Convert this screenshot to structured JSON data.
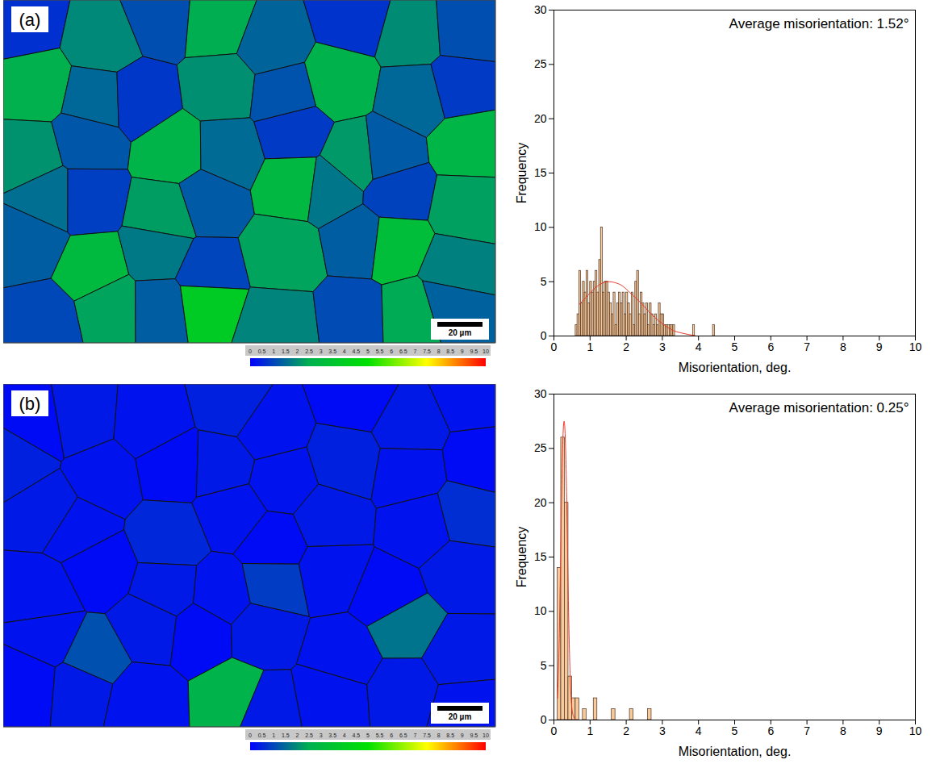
{
  "chart_data": [
    {
      "type": "histogram",
      "annotation": "Average misorientation: 1.52°",
      "x_label": "Misorientation, deg.",
      "y_label": "Frequency",
      "color": "#f7c99b",
      "bins": [
        0.6,
        0.65,
        0.7,
        0.75,
        0.8,
        0.85,
        0.9,
        0.95,
        1.0,
        1.05,
        1.1,
        1.15,
        1.2,
        1.25,
        1.3,
        1.35,
        1.4,
        1.45,
        1.5,
        1.55,
        1.6,
        1.65,
        1.7,
        1.75,
        1.8,
        1.85,
        1.9,
        1.95,
        2.0,
        2.05,
        2.1,
        2.15,
        2.2,
        2.25,
        2.3,
        2.35,
        2.4,
        2.45,
        2.5,
        2.55,
        2.6,
        2.65,
        2.7,
        2.75,
        2.8,
        2.85,
        2.9,
        2.95,
        3.0,
        3.05,
        3.1,
        3.15,
        3.2,
        3.25,
        3.3,
        3.35,
        3.4,
        3.45,
        3.5,
        3.55,
        3.6,
        3.65,
        3.7,
        3.75,
        3.8,
        3.85,
        3.9,
        3.95,
        4.0,
        4.05,
        4.1,
        4.15,
        4.2,
        4.25,
        4.3,
        4.35,
        4.4,
        4.45,
        4.5
      ],
      "counts": [
        1,
        2,
        6,
        3,
        5,
        4,
        6,
        3,
        5,
        4,
        5,
        6,
        4,
        7,
        10,
        4,
        5,
        5,
        4,
        3,
        2,
        4,
        1,
        3,
        4,
        3,
        4,
        2,
        4,
        3,
        2,
        4,
        1,
        5,
        6,
        2,
        4,
        3,
        2,
        3,
        1,
        3,
        2,
        1,
        2,
        1,
        3,
        2,
        2,
        1,
        1,
        1,
        1,
        1,
        1,
        0,
        0,
        0,
        0,
        0,
        0,
        0,
        0,
        0,
        0,
        1,
        0,
        0,
        0,
        0,
        0,
        0,
        0,
        0,
        0,
        0,
        1,
        0
      ],
      "fit": {
        "type": "line",
        "color": "#e8392a",
        "x": [
          0.7,
          0.9,
          1.1,
          1.3,
          1.5,
          1.7,
          1.9,
          2.1,
          2.3,
          2.5,
          2.7,
          2.9,
          3.1,
          3.3,
          3.5,
          3.7,
          3.9
        ],
        "values": [
          2.9,
          3.6,
          4.3,
          4.8,
          5.0,
          4.9,
          4.6,
          4.0,
          3.4,
          2.7,
          2.0,
          1.4,
          0.9,
          0.5,
          0.3,
          0.15,
          0.05
        ]
      },
      "xlim": [
        0,
        10
      ],
      "xticks": [
        0,
        1,
        2,
        3,
        4,
        5,
        6,
        7,
        8,
        9,
        10
      ],
      "ylim": [
        0,
        30
      ],
      "yticks": [
        0,
        5,
        10,
        15,
        20,
        25,
        30
      ]
    },
    {
      "type": "histogram",
      "annotation": "Average misorientation: 0.25°",
      "x_label": "Misorientation, deg.",
      "y_label": "Frequency",
      "color": "#f7c99b",
      "bins": [
        0.1,
        0.2,
        0.3,
        0.4,
        0.5,
        0.6,
        0.7,
        0.8,
        0.9,
        1.0,
        1.1,
        1.2,
        1.3,
        1.4,
        1.5,
        1.6,
        1.7,
        1.8,
        1.9,
        2.0,
        2.1,
        2.2,
        2.3,
        2.4,
        2.5,
        2.6,
        2.7
      ],
      "counts": [
        14,
        26,
        20,
        4,
        2,
        2,
        0,
        1,
        0,
        0,
        2,
        0,
        0,
        0,
        0,
        1,
        0,
        0,
        0,
        0,
        1,
        0,
        0,
        0,
        0,
        1
      ],
      "fit": {
        "type": "line",
        "color": "#e8392a",
        "x": [
          0.1,
          0.15,
          0.2,
          0.25,
          0.3,
          0.35,
          0.4,
          0.45,
          0.5,
          0.55,
          0.6
        ],
        "values": [
          2,
          8,
          18,
          26,
          27,
          21,
          11,
          4,
          1,
          0.3,
          0
        ]
      },
      "xlim": [
        0,
        10
      ],
      "xticks": [
        0,
        1,
        2,
        3,
        4,
        5,
        6,
        7,
        8,
        9,
        10
      ],
      "ylim": [
        0,
        30
      ],
      "yticks": [
        0,
        5,
        10,
        15,
        20,
        25,
        30
      ]
    }
  ],
  "maps": [
    {
      "label": "(a)",
      "scale_bar": "20 µm",
      "color_bar": {
        "range": [
          0,
          10
        ],
        "ticks": [
          0,
          0.5,
          1,
          1.5,
          2,
          2.5,
          3,
          3.5,
          4,
          4.5,
          5,
          5.5,
          6,
          6.5,
          7,
          7.5,
          8,
          8.5,
          9,
          9.5,
          10
        ],
        "colors": [
          "#0000ff",
          "#00b050",
          "#00e000",
          "#ffff00",
          "#ff0000"
        ]
      }
    },
    {
      "label": "(b)",
      "scale_bar": "20 µm",
      "color_bar": {
        "range": [
          0,
          10
        ],
        "ticks": [
          0,
          0.5,
          1,
          1.5,
          2,
          2.5,
          3,
          3.5,
          4,
          4.5,
          5,
          5.5,
          6,
          6.5,
          7,
          7.5,
          8,
          8.5,
          9,
          9.5,
          10
        ],
        "colors": [
          "#0000ff",
          "#00b050",
          "#00e000",
          "#ffff00",
          "#ff0000"
        ]
      }
    }
  ]
}
